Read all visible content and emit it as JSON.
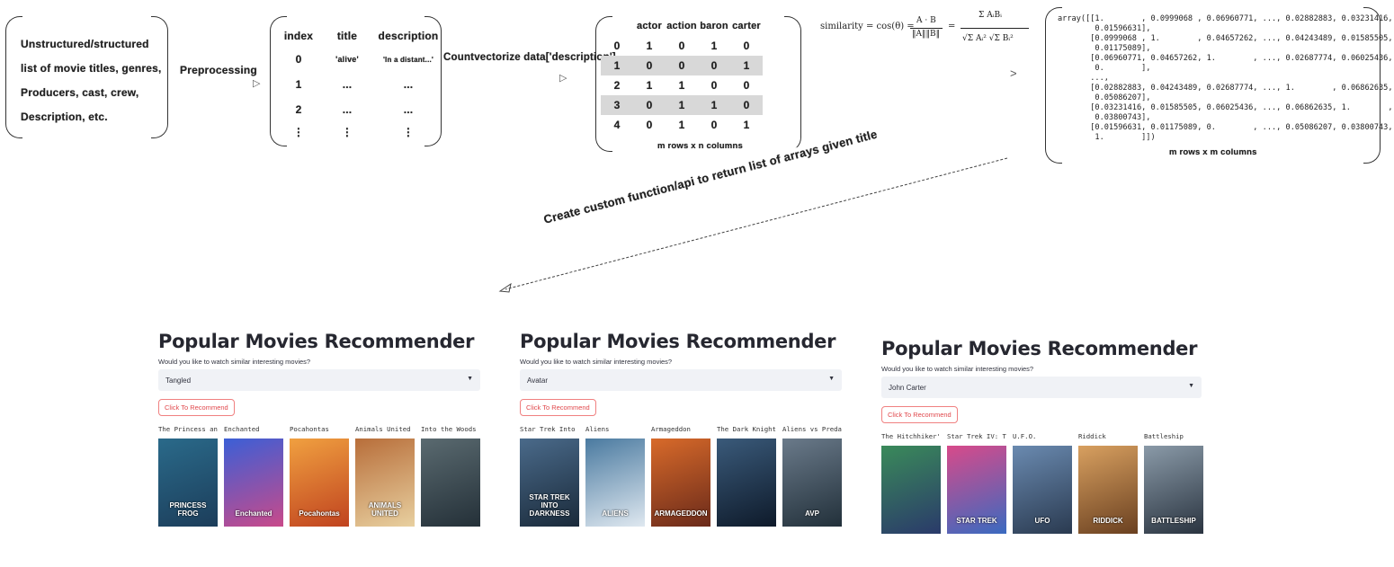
{
  "flow": {
    "input_box_lines": [
      "Unstructured/structured",
      "list of movie titles, genres,",
      "Producers, cast, crew,",
      "Description, etc."
    ],
    "step1": "Preprocessing",
    "dataframe": {
      "headers": [
        "index",
        "title",
        "description"
      ],
      "rows": [
        [
          "0",
          "'alive'",
          "'In a distant...'"
        ],
        [
          "1",
          "...",
          "..."
        ],
        [
          "2",
          "...",
          "..."
        ],
        [
          "⋮",
          "⋮",
          "⋮"
        ]
      ]
    },
    "step2": "Countvectorize data['description']",
    "matrix": {
      "headers": [
        "",
        "actor",
        "action",
        "baron",
        "carter"
      ],
      "rows": [
        [
          "0",
          "1",
          "0",
          "1",
          "0"
        ],
        [
          "1",
          "0",
          "0",
          "0",
          "1"
        ],
        [
          "2",
          "1",
          "1",
          "0",
          "0"
        ],
        [
          "3",
          "0",
          "1",
          "1",
          "0"
        ],
        [
          "4",
          "0",
          "1",
          "0",
          "1"
        ]
      ],
      "highlight_rows": [
        1,
        3
      ],
      "caption": "m rows x n columns"
    },
    "formula_lhs": "similarity = cos(θ) =",
    "formula_frac_num": "A · B",
    "formula_frac_den": "‖A‖‖B‖",
    "formula_sum_num": "Σ AᵢBᵢ",
    "formula_sum_den": "√Σ Aᵢ² √Σ Bᵢ²",
    "array_text": "array([[1.        , 0.0999068 , 0.06960771, ..., 0.02882883, 0.03231416,\n        0.01596631],\n       [0.0999068 , 1.        , 0.04657262, ..., 0.04243489, 0.01585505,\n        0.01175089],\n       [0.06960771, 0.04657262, 1.        , ..., 0.02687774, 0.06025436,\n        0.        ],\n       ...,\n       [0.02882883, 0.04243489, 0.02687774, ..., 1.        , 0.06862635,\n        0.05086207],\n       [0.03231416, 0.01585505, 0.06025436, ..., 0.06862635, 1.        ,\n        0.03800743],\n       [0.01596631, 0.01175089, 0.        , ..., 0.05086207, 0.03800743,\n        1.        ]])",
    "array_caption": "m rows x m columns",
    "step3": "Create custom function/api to return list of arrays given title"
  },
  "apps": [
    {
      "title": "Popular Movies Recommender",
      "question": "Would you like to watch similar interesting movies?",
      "selected": "Tangled",
      "button": "Click To Recommend",
      "movies": [
        "The Princess and the Frog",
        "Enchanted",
        "Pocahontas",
        "Animals United",
        "Into the Woods"
      ],
      "posters": [
        {
          "label": "PRINCESS FROG",
          "colors": [
            "#2a6a8a",
            "#1c3d5a"
          ]
        },
        {
          "label": "Enchanted",
          "colors": [
            "#3b5fd6",
            "#c94a8a"
          ]
        },
        {
          "label": "Pocahontas",
          "colors": [
            "#f0a040",
            "#c0431f"
          ]
        },
        {
          "label": "ANIMALS UNITED",
          "colors": [
            "#b86e3a",
            "#e8d0a0"
          ]
        },
        {
          "label": "",
          "colors": [
            "#5a6a70",
            "#243038"
          ]
        }
      ]
    },
    {
      "title": "Popular Movies Recommender",
      "question": "Would you like to watch similar interesting movies?",
      "selected": "Avatar",
      "button": "Click To Recommend",
      "movies": [
        "Star Trek Into Darkness",
        "Aliens",
        "Armageddon",
        "The Dark Knight",
        "Aliens vs Predator"
      ],
      "posters": [
        {
          "label": "STAR TREK INTO DARKNESS",
          "colors": [
            "#4a6a8a",
            "#1a2a3a"
          ]
        },
        {
          "label": "ALIENS",
          "colors": [
            "#4a7aa0",
            "#dfe8f0"
          ]
        },
        {
          "label": "ARMAGEDDON",
          "colors": [
            "#d86a2a",
            "#6a2a1a"
          ]
        },
        {
          "label": "",
          "colors": [
            "#3a5a7a",
            "#0e1a2a"
          ]
        },
        {
          "label": "AVP",
          "colors": [
            "#6a7a8a",
            "#22303a"
          ]
        }
      ]
    },
    {
      "title": "Popular Movies Recommender",
      "question": "Would you like to watch similar interesting movies?",
      "selected": "John Carter",
      "button": "Click To Recommend",
      "movies": [
        "The Hitchhiker's Guide to the Galaxy",
        "Star Trek IV: The Voyage Home",
        "U.F.O.",
        "Riddick",
        "Battleship"
      ],
      "posters": [
        {
          "label": "",
          "colors": [
            "#3a8a5a",
            "#2a3a6a"
          ]
        },
        {
          "label": "STAR TREK",
          "colors": [
            "#d84a8a",
            "#3a6ac0"
          ]
        },
        {
          "label": "UFO",
          "colors": [
            "#6a8ab0",
            "#2a3a50"
          ]
        },
        {
          "label": "RIDDICK",
          "colors": [
            "#d8a060",
            "#6a4020"
          ]
        },
        {
          "label": "BATTLESHIP",
          "colors": [
            "#8a9aa8",
            "#2a3440"
          ]
        }
      ]
    }
  ]
}
